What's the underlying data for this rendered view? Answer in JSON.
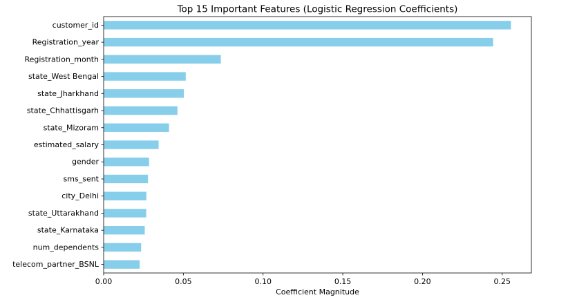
{
  "chart_data": {
    "type": "bar",
    "orientation": "horizontal",
    "title": "Top 15 Important Features (Logistic Regression Coefficients)",
    "xlabel": "Coefficient Magnitude",
    "ylabel": "",
    "categories": [
      "customer_id",
      "Registration_year",
      "Registration_month",
      "state_West Bengal",
      "state_Jharkhand",
      "state_Chhattisgarh",
      "state_Mizoram",
      "estimated_salary",
      "gender",
      "sms_sent",
      "city_Delhi",
      "state_Uttarakhand",
      "state_Karnataka",
      "num_dependents",
      "telecom_partner_BSNL"
    ],
    "values": [
      0.2555,
      0.2443,
      0.0735,
      0.0515,
      0.0503,
      0.0463,
      0.041,
      0.0345,
      0.0285,
      0.0278,
      0.0268,
      0.0267,
      0.0258,
      0.0235,
      0.0226
    ],
    "xlim": [
      0,
      0.2683
    ],
    "xticks": [
      0.0,
      0.05,
      0.1,
      0.15,
      0.2,
      0.25
    ],
    "xtick_labels": [
      "0.00",
      "0.05",
      "0.10",
      "0.15",
      "0.20",
      "0.25"
    ],
    "grid": false,
    "legend": "none",
    "bar_color": "#87ceeb"
  }
}
